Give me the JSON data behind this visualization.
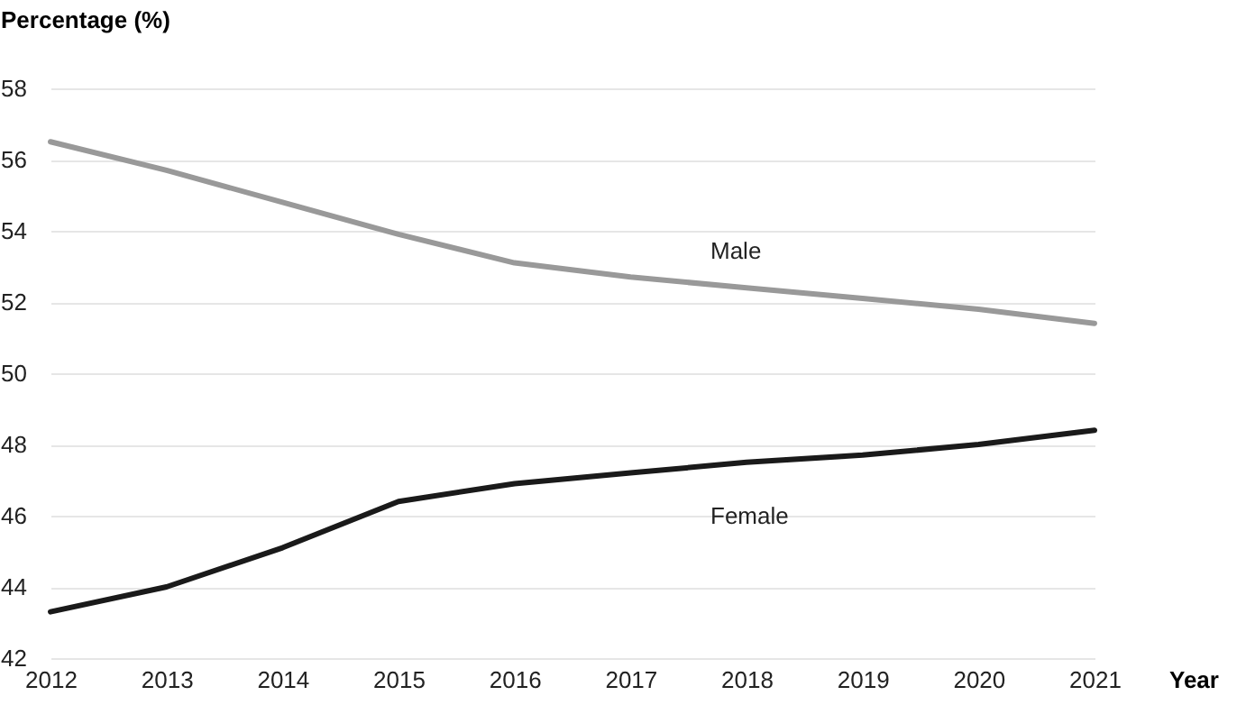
{
  "chart_data": {
    "type": "line",
    "xlabel": "Year",
    "ylabel": "Percentage (%)",
    "x": [
      2012,
      2013,
      2014,
      2015,
      2016,
      2017,
      2018,
      2019,
      2020,
      2021
    ],
    "xlim": [
      2012,
      2021
    ],
    "xticks": [
      2012,
      2013,
      2014,
      2015,
      2016,
      2017,
      2018,
      2019,
      2020,
      2021
    ],
    "ylim": [
      42,
      58
    ],
    "yticks": [
      42,
      44,
      46,
      48,
      50,
      52,
      54,
      56,
      58
    ],
    "grid": "y",
    "legend": false,
    "marker": "none",
    "line_style": "solid",
    "series": [
      {
        "name": "Male",
        "color": "#999999",
        "values": [
          56.5,
          55.7,
          54.8,
          53.9,
          53.1,
          52.7,
          52.4,
          52.1,
          51.8,
          51.4
        ]
      },
      {
        "name": "Female",
        "color": "#1a1a1a",
        "values": [
          43.3,
          44.0,
          45.1,
          46.4,
          46.9,
          47.2,
          47.5,
          47.7,
          48.0,
          48.4
        ]
      }
    ]
  }
}
